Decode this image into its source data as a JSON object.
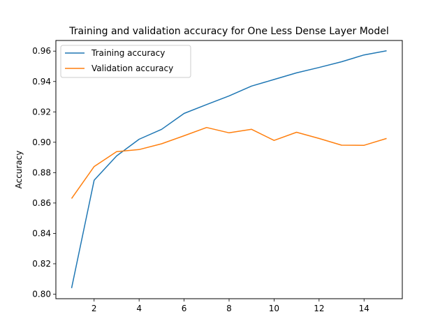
{
  "chart_data": {
    "type": "line",
    "title": "Training and validation accuracy for One Less Dense Layer Model",
    "xlabel": "",
    "ylabel": "Accuracy",
    "x": [
      1,
      2,
      3,
      4,
      5,
      6,
      7,
      8,
      9,
      10,
      11,
      12,
      13,
      14,
      15
    ],
    "xlim": [
      0.3,
      15.7
    ],
    "ylim": [
      0.797,
      0.967
    ],
    "xticks": [
      2,
      4,
      6,
      8,
      10,
      12,
      14
    ],
    "yticks": [
      0.8,
      0.82,
      0.84,
      0.86,
      0.88,
      0.9,
      0.92,
      0.94,
      0.96
    ],
    "xtick_labels": [
      "2",
      "4",
      "6",
      "8",
      "10",
      "12",
      "14"
    ],
    "ytick_labels": [
      "0.80",
      "0.82",
      "0.84",
      "0.86",
      "0.88",
      "0.90",
      "0.92",
      "0.94",
      "0.96"
    ],
    "grid": false,
    "legend_position": "upper-left",
    "series": [
      {
        "name": "Training accuracy",
        "color": "#1f77b4",
        "values": [
          0.804,
          0.875,
          0.891,
          0.902,
          0.9085,
          0.919,
          0.9248,
          0.9305,
          0.937,
          0.9413,
          0.9457,
          0.9492,
          0.953,
          0.9575,
          0.9602
        ]
      },
      {
        "name": "Validation accuracy",
        "color": "#ff7f0e",
        "values": [
          0.863,
          0.884,
          0.8938,
          0.8952,
          0.899,
          0.9043,
          0.9097,
          0.9062,
          0.9085,
          0.9012,
          0.9066,
          0.9025,
          0.8981,
          0.898,
          0.9025
        ]
      }
    ]
  }
}
